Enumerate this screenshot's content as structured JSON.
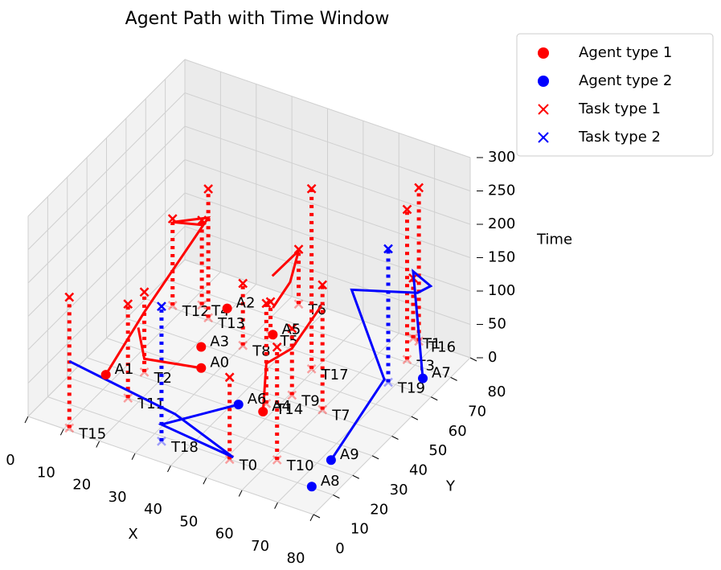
{
  "chart_data": {
    "type": "scatter3d",
    "title": "Agent Path with Time Window",
    "xlabel": "X",
    "ylabel": "Y",
    "zlabel": "Time",
    "xlim": [
      0,
      80
    ],
    "ylim": [
      0,
      80
    ],
    "zlim": [
      0,
      300
    ],
    "xticks": [
      0,
      10,
      20,
      30,
      40,
      50,
      60,
      70,
      80
    ],
    "yticks": [
      0,
      10,
      20,
      30,
      40,
      50,
      60,
      70,
      80
    ],
    "zticks": [
      0,
      50,
      100,
      150,
      200,
      250,
      300
    ],
    "grid": true,
    "legend": {
      "position": "upper right",
      "items": [
        {
          "name": "Agent type 1",
          "color": "#ff0000",
          "marker": "o"
        },
        {
          "name": "Agent type 2",
          "color": "#0000ff",
          "marker": "o"
        },
        {
          "name": "Task type 1",
          "color": "#ff0000",
          "marker": "x"
        },
        {
          "name": "Task type 2",
          "color": "#0000ff",
          "marker": "x"
        }
      ]
    },
    "agents": [
      {
        "label": "A0",
        "x": 26,
        "y": 41,
        "color": "#ff0000"
      },
      {
        "label": "A1",
        "x": 7.5,
        "y": 26,
        "color": "#ff0000"
      },
      {
        "label": "A2",
        "x": 19,
        "y": 67,
        "color": "#ff0000"
      },
      {
        "label": "A3",
        "x": 21.6,
        "y": 49,
        "color": "#ff0000"
      },
      {
        "label": "A4",
        "x": 48,
        "y": 32.5,
        "color": "#ff0000"
      },
      {
        "label": "A5",
        "x": 34,
        "y": 63,
        "color": "#ff0000"
      },
      {
        "label": "A6",
        "x": 41.4,
        "y": 32,
        "color": "#0000ff"
      },
      {
        "label": "A7",
        "x": 74.4,
        "y": 66,
        "color": "#0000ff"
      },
      {
        "label": "A8",
        "x": 73.8,
        "y": 10.4,
        "color": "#0000ff"
      },
      {
        "label": "A9",
        "x": 72.3,
        "y": 23,
        "color": "#0000ff"
      }
    ],
    "tasks": [
      {
        "label": "T0",
        "x": 51,
        "y": 10,
        "start": 0,
        "end": 123,
        "color": "#ff0000"
      },
      {
        "label": "T1",
        "x": 64,
        "y": 80,
        "start": 0,
        "end": 90,
        "color": "#ff0000"
      },
      {
        "label": "T2",
        "x": 15,
        "y": 32,
        "start": 0,
        "end": 120,
        "color": "#ff0000"
      },
      {
        "label": "T3",
        "x": 70,
        "y": 66,
        "start": 20,
        "end": 245,
        "color": "#ff0000"
      },
      {
        "label": "T4",
        "x": 13,
        "y": 65,
        "start": 0,
        "end": 127,
        "color": "#ff0000"
      },
      {
        "label": "T5",
        "x": 35,
        "y": 60,
        "start": 10,
        "end": 60,
        "color": "#ff0000"
      },
      {
        "label": "T6",
        "x": 33,
        "y": 78,
        "start": 0,
        "end": 82,
        "color": "#ff0000"
      },
      {
        "label": "T7",
        "x": 60,
        "y": 41,
        "start": 0,
        "end": 187,
        "color": "#ff0000"
      },
      {
        "label": "T8",
        "x": 30,
        "y": 55,
        "start": 0,
        "end": 93,
        "color": "#ff0000"
      },
      {
        "label": "T9",
        "x": 52,
        "y": 40,
        "start": 10,
        "end": 110,
        "color": "#ff0000"
      },
      {
        "label": "T10",
        "x": 61,
        "y": 16,
        "start": 0,
        "end": 169,
        "color": "#ff0000"
      },
      {
        "label": "T11",
        "x": 17,
        "y": 20,
        "start": 0,
        "end": 141,
        "color": "#ff0000"
      },
      {
        "label": "T12",
        "x": 7,
        "y": 61,
        "start": 0,
        "end": 130,
        "color": "#ff0000"
      },
      {
        "label": "T13",
        "x": 17,
        "y": 61,
        "start": 0,
        "end": 193,
        "color": "#ff0000"
      },
      {
        "label": "T14",
        "x": 47,
        "y": 36,
        "start": 0,
        "end": 150,
        "color": "#ff0000"
      },
      {
        "label": "T15",
        "x": 11,
        "y": 1,
        "start": 0,
        "end": 196,
        "color": "#ff0000"
      },
      {
        "label": "T16",
        "x": 70,
        "y": 72,
        "start": 30,
        "end": 260,
        "color": "#ff0000"
      },
      {
        "label": "T17",
        "x": 52,
        "y": 50,
        "start": 20,
        "end": 290,
        "color": "#ff0000"
      },
      {
        "label": "T18",
        "x": 33,
        "y": 8,
        "start": 0,
        "end": 202,
        "color": "#0000ff"
      },
      {
        "label": "T19",
        "x": 68,
        "y": 60,
        "start": 0,
        "end": 200,
        "color": "#0000ff"
      }
    ],
    "paths": [
      {
        "color": "#ff0000",
        "x": [
          7.5,
          15,
          17,
          7,
          13
        ],
        "y": [
          26,
          32,
          61,
          61,
          65
        ],
        "z": [
          0,
          90,
          150,
          125,
          120
        ]
      },
      {
        "color": "#ff0000",
        "x": [
          26,
          15,
          10
        ],
        "y": [
          41,
          32,
          38
        ],
        "z": [
          0,
          20,
          40
        ]
      },
      {
        "color": "#ff0000",
        "x": [
          34,
          35,
          33,
          30
        ],
        "y": [
          63,
          70,
          78,
          70
        ],
        "z": [
          40,
          60,
          80,
          60
        ]
      },
      {
        "color": "#ff0000",
        "x": [
          48,
          47,
          52,
          52
        ],
        "y": [
          32.5,
          36,
          40,
          55
        ],
        "z": [
          0,
          60,
          80,
          100
        ]
      },
      {
        "color": "#0000ff",
        "x": [
          41.4,
          33,
          52,
          33,
          11
        ],
        "y": [
          32,
          8,
          10,
          15,
          1
        ],
        "z": [
          0,
          25,
          5,
          20,
          100
        ]
      },
      {
        "color": "#0000ff",
        "x": [
          72.3,
          68,
          55,
          68,
          70,
          64,
          74.4
        ],
        "y": [
          23,
          58,
          65,
          75,
          78,
          80,
          66
        ],
        "z": [
          0,
          10,
          100,
          90,
          95,
          100,
          0
        ]
      }
    ]
  }
}
